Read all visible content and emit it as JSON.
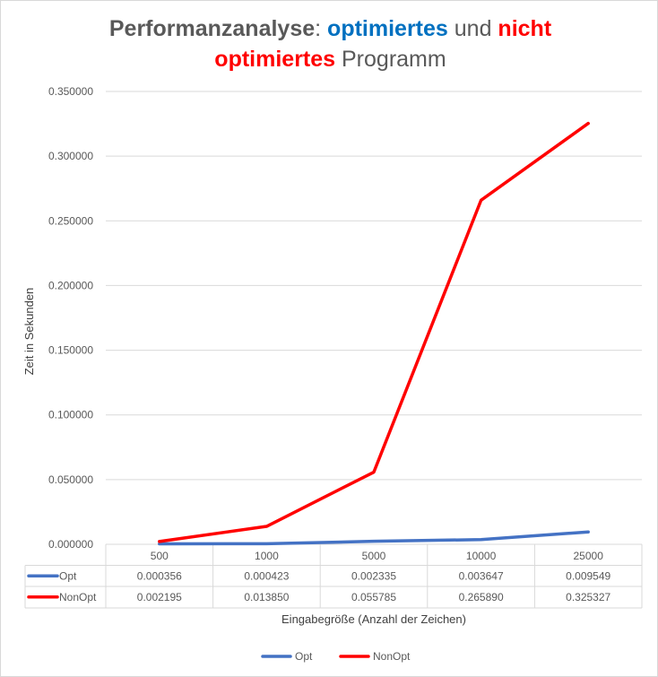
{
  "chart_data": {
    "type": "line",
    "title": {
      "line1": [
        {
          "text": "Performanzanalyse",
          "color": "#595959",
          "bold": true
        },
        {
          "text": ": ",
          "color": "#595959",
          "bold": false
        },
        {
          "text": "optimiertes",
          "color": "#0070c0",
          "bold": true
        },
        {
          "text": " und ",
          "color": "#595959",
          "bold": false
        },
        {
          "text": "nicht",
          "color": "#ff0000",
          "bold": true
        }
      ],
      "line2": [
        {
          "text": "optimiertes",
          "color": "#ff0000",
          "bold": true
        },
        {
          "text": " Programm",
          "color": "#595959",
          "bold": false
        }
      ]
    },
    "xlabel": "Eingabegröße (Anzahl der Zeichen)",
    "ylabel": "Zeit in Sekunden",
    "categories": [
      "500",
      "1000",
      "5000",
      "10000",
      "25000"
    ],
    "ylim": [
      0,
      0.35
    ],
    "yticks": [
      0,
      0.05,
      0.1,
      0.15,
      0.2,
      0.25,
      0.3,
      0.35
    ],
    "ytick_labels": [
      "0.000000",
      "0.050000",
      "0.100000",
      "0.150000",
      "0.200000",
      "0.250000",
      "0.300000",
      "0.350000"
    ],
    "grid": true,
    "legend_position": "bottom",
    "data_table": true,
    "series": [
      {
        "name": "Opt",
        "color": "#4472c4",
        "values": [
          0.000356,
          0.000423,
          0.002335,
          0.003647,
          0.009549
        ],
        "labels": [
          "0.000356",
          "0.000423",
          "0.002335",
          "0.003647",
          "0.009549"
        ]
      },
      {
        "name": "NonOpt",
        "color": "#ff0000",
        "values": [
          0.002195,
          0.01385,
          0.055785,
          0.26589,
          0.325327
        ],
        "labels": [
          "0.002195",
          "0.013850",
          "0.055785",
          "0.265890",
          "0.325327"
        ]
      }
    ]
  }
}
